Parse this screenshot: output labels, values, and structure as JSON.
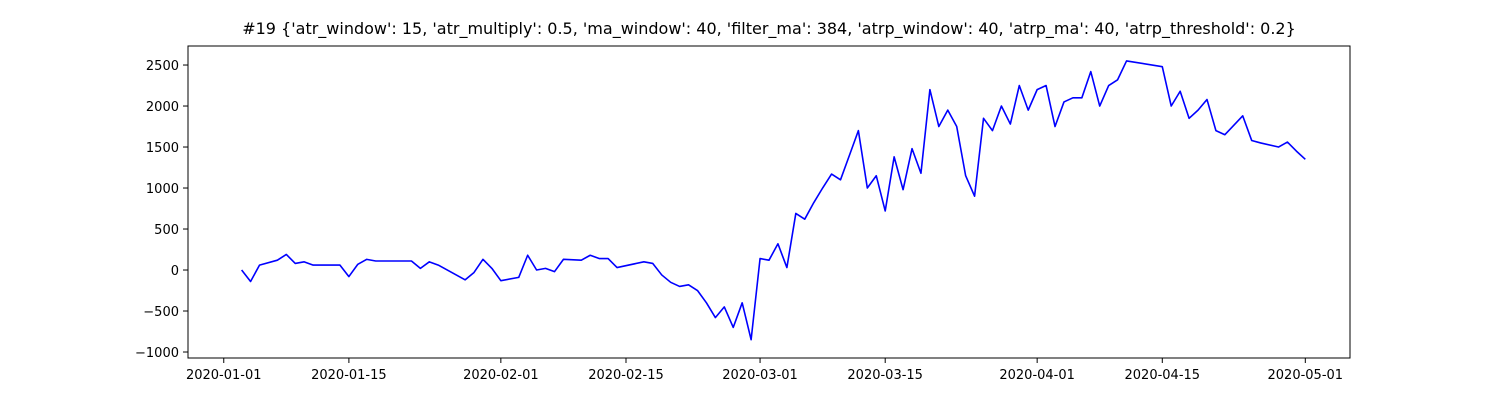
{
  "chart_data": {
    "type": "line",
    "title": "#19 {'atr_window': 15, 'atr_multiply': 0.5, 'ma_window': 40, 'filter_ma': 384, 'atrp_window': 40, 'atrp_ma': 40, 'atrp_threshold': 0.2}",
    "x": [
      "2020-01-03",
      "2020-01-04",
      "2020-01-05",
      "2020-01-07",
      "2020-01-08",
      "2020-01-09",
      "2020-01-10",
      "2020-01-11",
      "2020-01-14",
      "2020-01-15",
      "2020-01-16",
      "2020-01-17",
      "2020-01-18",
      "2020-01-22",
      "2020-01-23",
      "2020-01-24",
      "2020-01-25",
      "2020-01-28",
      "2020-01-29",
      "2020-01-30",
      "2020-01-31",
      "2020-02-01",
      "2020-02-03",
      "2020-02-04",
      "2020-02-05",
      "2020-02-06",
      "2020-02-07",
      "2020-02-08",
      "2020-02-10",
      "2020-02-11",
      "2020-02-12",
      "2020-02-13",
      "2020-02-14",
      "2020-02-17",
      "2020-02-18",
      "2020-02-19",
      "2020-02-20",
      "2020-02-21",
      "2020-02-22",
      "2020-02-23",
      "2020-02-24",
      "2020-02-25",
      "2020-02-26",
      "2020-02-27",
      "2020-02-28",
      "2020-02-29",
      "2020-03-01",
      "2020-03-02",
      "2020-03-03",
      "2020-03-04",
      "2020-03-05",
      "2020-03-06",
      "2020-03-07",
      "2020-03-08",
      "2020-03-09",
      "2020-03-10",
      "2020-03-11",
      "2020-03-12",
      "2020-03-13",
      "2020-03-14",
      "2020-03-15",
      "2020-03-16",
      "2020-03-17",
      "2020-03-18",
      "2020-03-19",
      "2020-03-20",
      "2020-03-21",
      "2020-03-22",
      "2020-03-23",
      "2020-03-24",
      "2020-03-25",
      "2020-03-26",
      "2020-03-27",
      "2020-03-28",
      "2020-03-29",
      "2020-03-30",
      "2020-03-31",
      "2020-04-01",
      "2020-04-02",
      "2020-04-03",
      "2020-04-04",
      "2020-04-05",
      "2020-04-06",
      "2020-04-07",
      "2020-04-08",
      "2020-04-09",
      "2020-04-10",
      "2020-04-11",
      "2020-04-15",
      "2020-04-16",
      "2020-04-17",
      "2020-04-18",
      "2020-04-19",
      "2020-04-20",
      "2020-04-21",
      "2020-04-22",
      "2020-04-24",
      "2020-04-25",
      "2020-04-26",
      "2020-04-28",
      "2020-04-29",
      "2020-04-30",
      "2020-05-01"
    ],
    "values": [
      0,
      -140,
      60,
      120,
      190,
      80,
      100,
      60,
      60,
      -80,
      70,
      130,
      110,
      110,
      20,
      100,
      60,
      -120,
      -30,
      130,
      20,
      -130,
      -90,
      180,
      0,
      20,
      -20,
      130,
      120,
      180,
      140,
      140,
      30,
      100,
      80,
      -60,
      -150,
      -200,
      -180,
      -250,
      -400,
      -580,
      -450,
      -700,
      -400,
      -850,
      140,
      120,
      320,
      30,
      690,
      620,
      820,
      1000,
      1170,
      1100,
      1400,
      1700,
      1000,
      1150,
      720,
      1380,
      980,
      1480,
      1180,
      2200,
      1750,
      1950,
      1750,
      1150,
      900,
      1850,
      1700,
      2000,
      1780,
      2250,
      1950,
      2200,
      2250,
      1750,
      2050,
      2100,
      2100,
      2420,
      2000,
      2250,
      2320,
      2550,
      2480,
      2000,
      2180,
      1850,
      1950,
      2080,
      1700,
      1650,
      1880,
      1580,
      1550,
      1500,
      1560,
      1450,
      1350
    ],
    "color": "#0000ff",
    "xlim": [
      "2019-12-28",
      "2020-05-06"
    ],
    "xticks": [
      "2020-01-01",
      "2020-01-15",
      "2020-02-01",
      "2020-02-15",
      "2020-03-01",
      "2020-03-15",
      "2020-04-01",
      "2020-04-15",
      "2020-05-01"
    ],
    "ylim": [
      -1073,
      2732
    ],
    "yticks": [
      {
        "value": -1000,
        "label": "−1000"
      },
      {
        "value": -500,
        "label": "−500"
      },
      0,
      500,
      1000,
      1500,
      2000,
      2500
    ],
    "grid": false
  }
}
